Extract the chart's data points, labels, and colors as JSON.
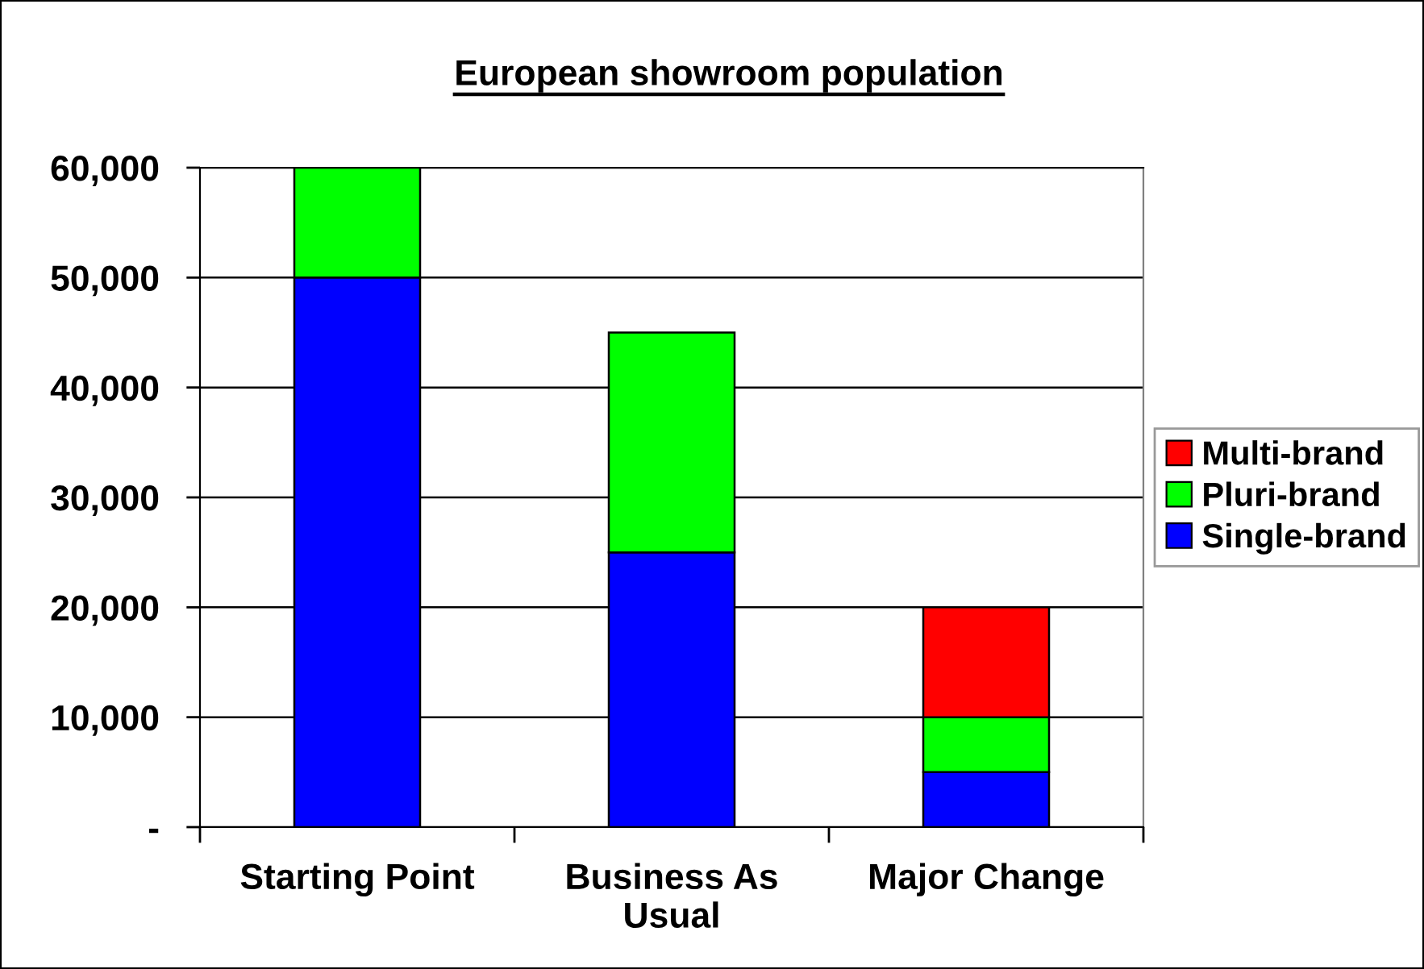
{
  "chart_data": {
    "type": "bar",
    "title": "European showroom population",
    "categories": [
      "Starting Point",
      "Business As Usual",
      "Major Change"
    ],
    "stacked": true,
    "series": [
      {
        "name": "Single-brand",
        "color": "#0000ff",
        "values": [
          50000,
          25000,
          5000
        ]
      },
      {
        "name": "Pluri-brand",
        "color": "#00ff00",
        "values": [
          10000,
          20000,
          5000
        ]
      },
      {
        "name": "Multi-brand",
        "color": "#ff0000",
        "values": [
          null,
          null,
          10000
        ]
      }
    ],
    "ylim": [
      0,
      60000
    ],
    "yticks": [
      {
        "value": 0,
        "label": "-"
      },
      {
        "value": 10000,
        "label": "10,000"
      },
      {
        "value": 20000,
        "label": "20,000"
      },
      {
        "value": 30000,
        "label": "30,000"
      },
      {
        "value": 40000,
        "label": "40,000"
      },
      {
        "value": 50000,
        "label": "50,000"
      },
      {
        "value": 60000,
        "label": "60,000"
      }
    ],
    "grid": "y",
    "legend": "right"
  }
}
